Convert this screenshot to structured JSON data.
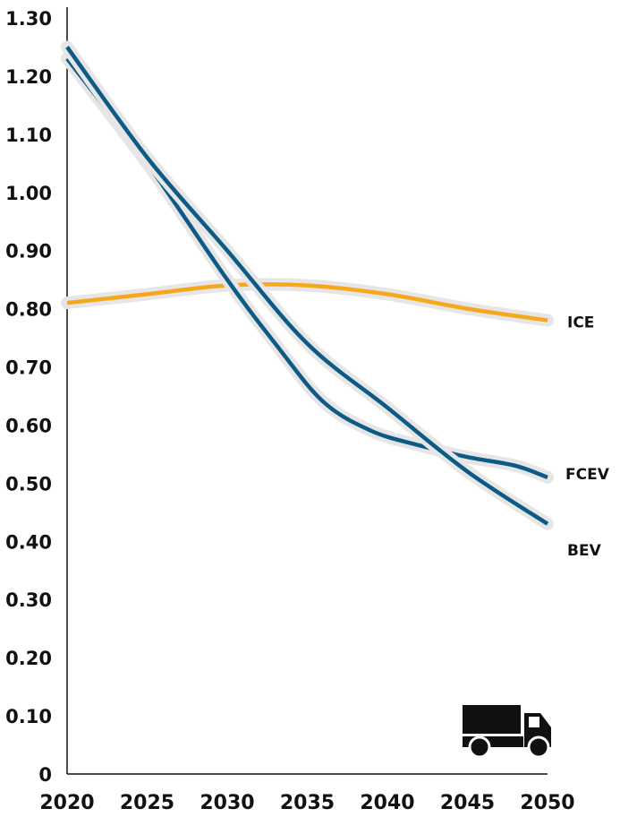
{
  "chart_data": {
    "type": "line",
    "title": "",
    "xlabel": "",
    "ylabel": "",
    "xlim": [
      2020,
      2050
    ],
    "ylim": [
      0,
      1.3
    ],
    "x_ticks": [
      "2020",
      "2025",
      "2030",
      "2035",
      "2040",
      "2045",
      "2050"
    ],
    "y_ticks": [
      "0",
      "0.10",
      "0.20",
      "0.30",
      "0.40",
      "0.50",
      "0.60",
      "0.70",
      "0.80",
      "0.90",
      "1.00",
      "1.10",
      "1.20",
      "1.30"
    ],
    "grid": false,
    "series": [
      {
        "name": "ICE",
        "color": "#f5a81c",
        "x": [
          2020,
          2025,
          2030,
          2035,
          2040,
          2045,
          2050
        ],
        "y": [
          0.81,
          0.825,
          0.84,
          0.84,
          0.825,
          0.8,
          0.78
        ]
      },
      {
        "name": "FCEV",
        "color": "#0d5a86",
        "x": [
          2020,
          2025,
          2030,
          2033,
          2036,
          2039,
          2042,
          2045,
          2048,
          2050
        ],
        "y": [
          1.23,
          1.05,
          0.85,
          0.74,
          0.64,
          0.59,
          0.565,
          0.545,
          0.53,
          0.51
        ]
      },
      {
        "name": "BEV",
        "color": "#0d5a86",
        "x": [
          2020,
          2025,
          2030,
          2035,
          2040,
          2045,
          2050
        ],
        "y": [
          1.25,
          1.06,
          0.9,
          0.74,
          0.63,
          0.52,
          0.43
        ]
      }
    ],
    "icon": "truck-icon"
  }
}
